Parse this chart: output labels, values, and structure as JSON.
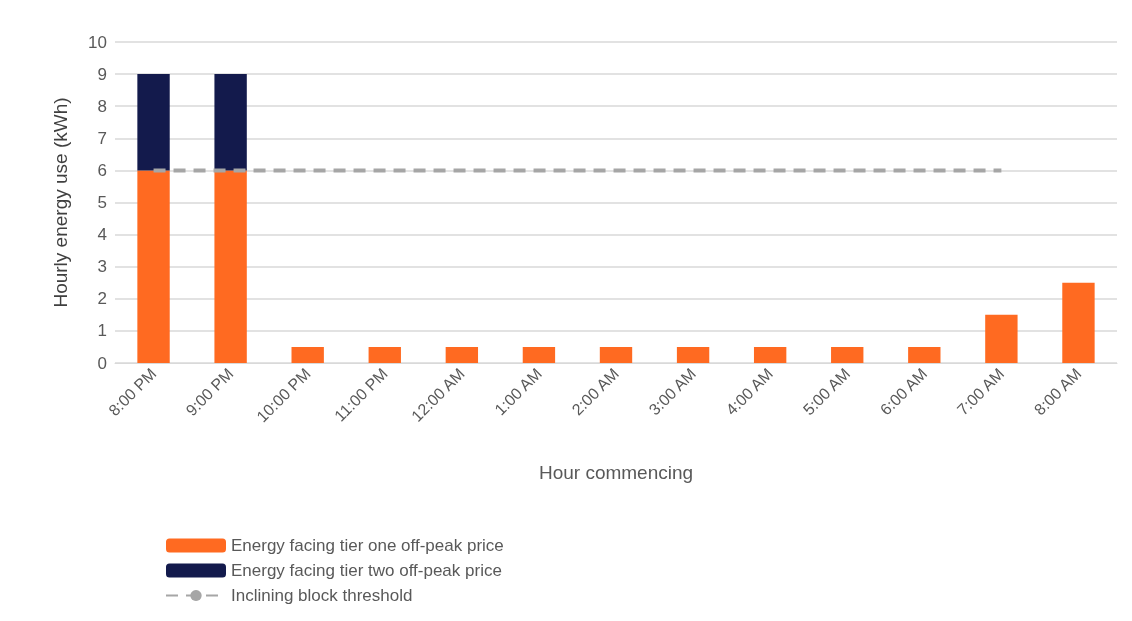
{
  "chart_data": {
    "type": "bar",
    "stacked": true,
    "xlabel": "Hour commencing",
    "ylabel": "Hourly energy use (kWh)",
    "categories": [
      "8:00 PM",
      "9:00 PM",
      "10:00 PM",
      "11:00 PM",
      "12:00 AM",
      "1:00 AM",
      "2:00 AM",
      "3:00 AM",
      "4:00 AM",
      "5:00 AM",
      "6:00 AM",
      "7:00 AM",
      "8:00 AM"
    ],
    "ylim": [
      0,
      10
    ],
    "yticks": [
      0,
      1,
      2,
      3,
      4,
      5,
      6,
      7,
      8,
      9,
      10
    ],
    "grid": "y",
    "legend": "bottom",
    "series": [
      {
        "name": "Energy facing tier one off-peak price",
        "color": "#ff6a21",
        "values": [
          6,
          6,
          0.5,
          0.5,
          0.5,
          0.5,
          0.5,
          0.5,
          0.5,
          0.5,
          0.5,
          1.5,
          2.5
        ]
      },
      {
        "name": "Energy facing tier two off-peak price",
        "color": "#131a4c",
        "values": [
          3,
          3,
          0,
          0,
          0,
          0,
          0,
          0,
          0,
          0,
          0,
          0,
          0
        ]
      },
      {
        "type": "line",
        "name": "Inclining block threshold",
        "color": "#a6a6a6",
        "line_style": "dashed",
        "marker": "none",
        "values": [
          6,
          6,
          6,
          6,
          6,
          6,
          6,
          6,
          6,
          6,
          6,
          6,
          null
        ]
      }
    ]
  }
}
